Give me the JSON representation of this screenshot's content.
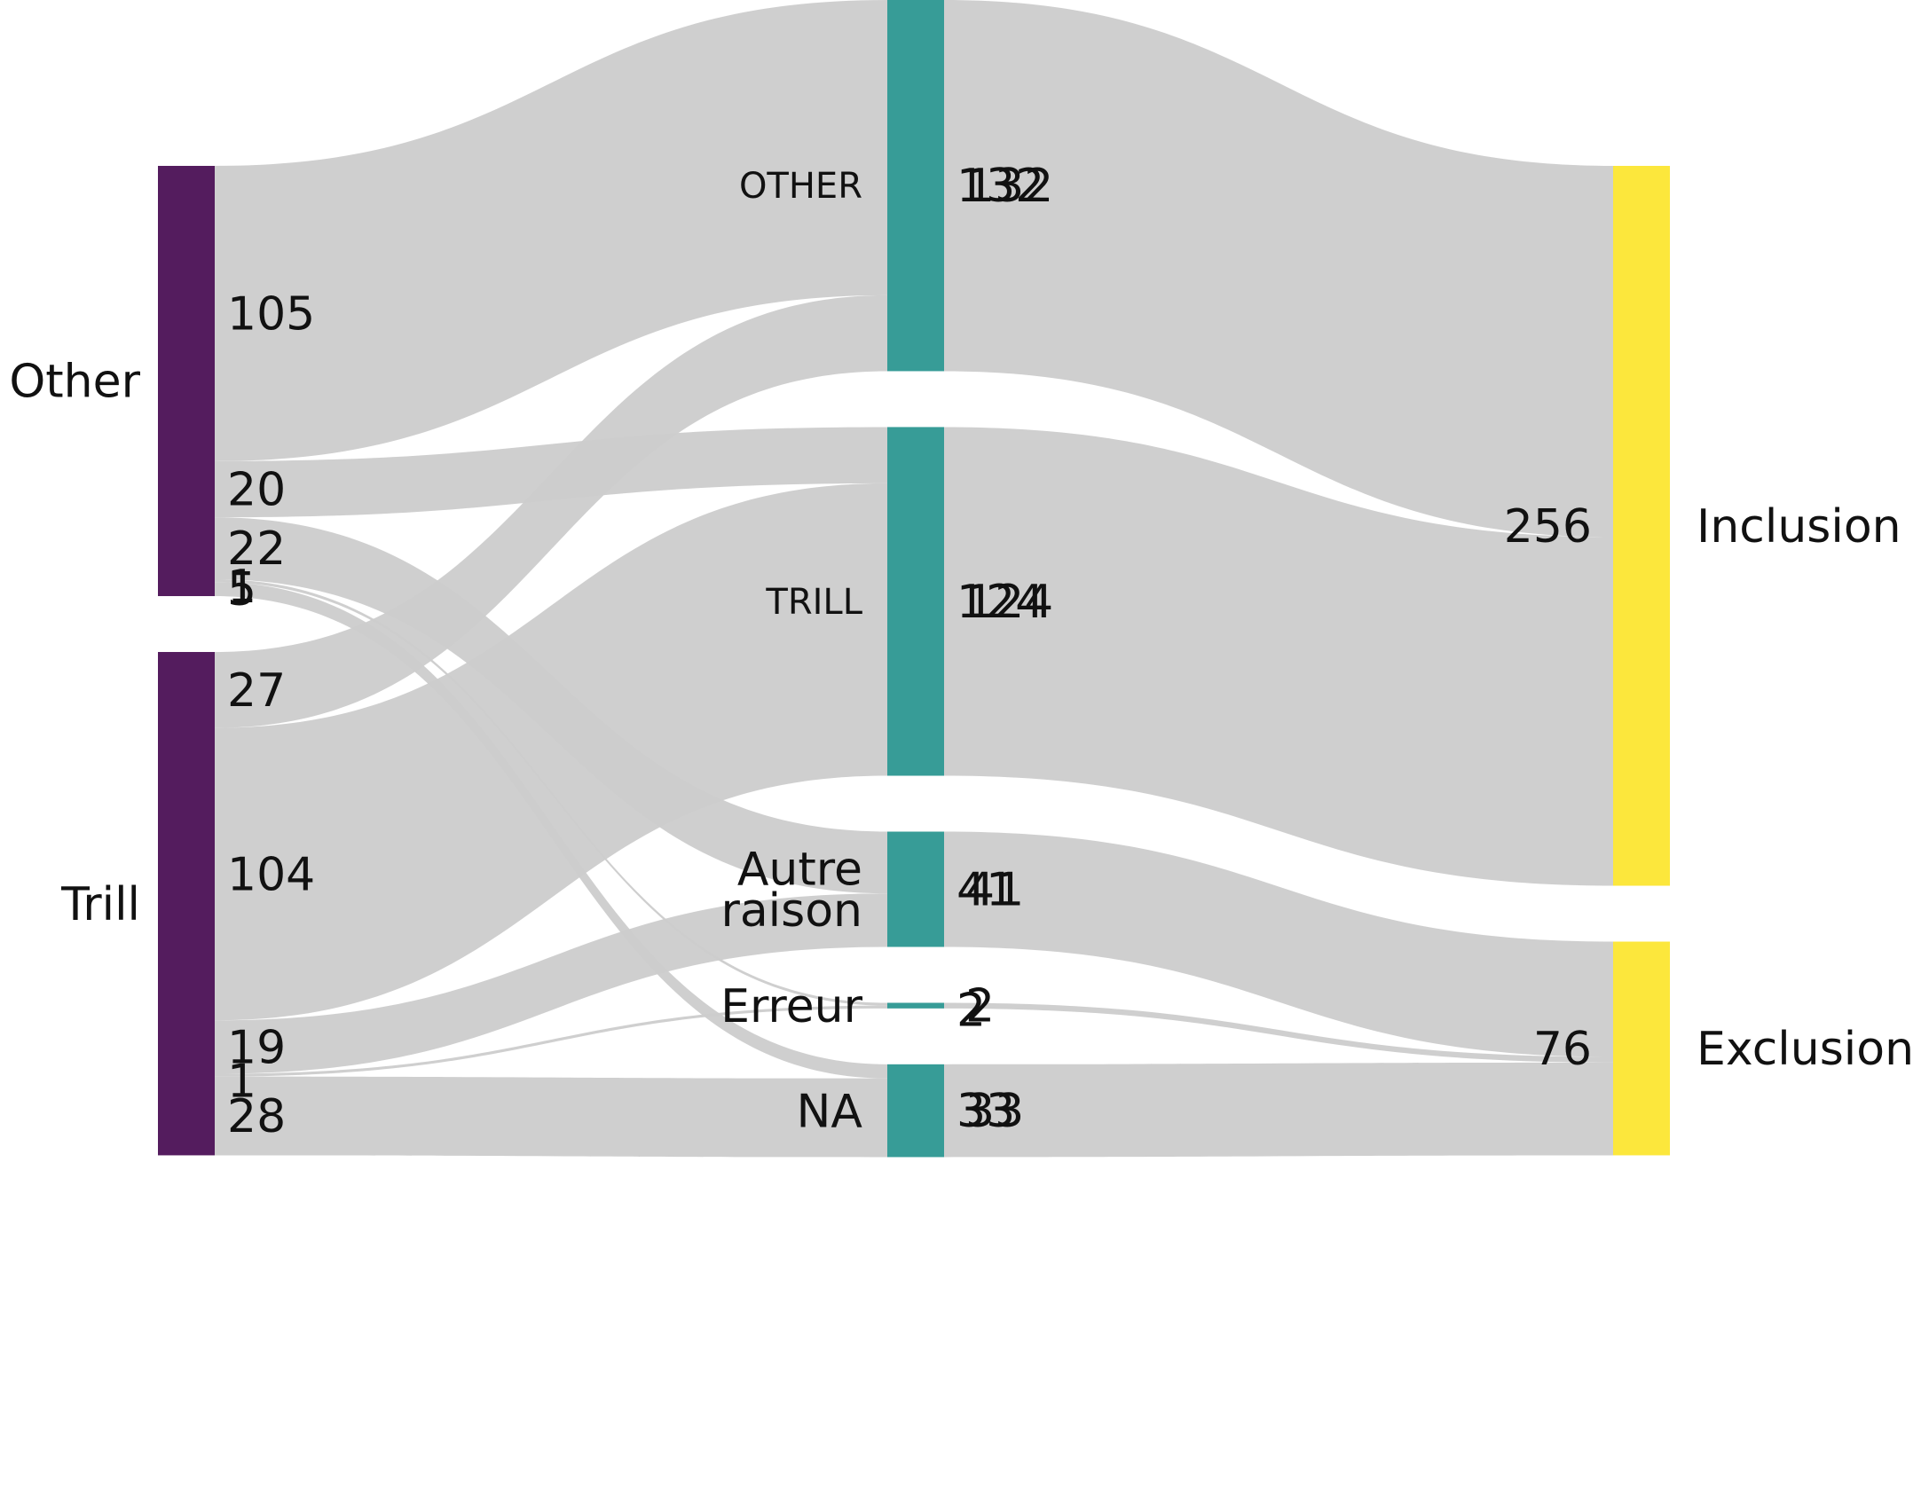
{
  "chart_data": {
    "type": "sankey",
    "title": "",
    "columns": [
      {
        "nodes": [
          {
            "id": "other",
            "label": "Other",
            "value": 153,
            "color": "#541c5e"
          },
          {
            "id": "trill",
            "label": "Trill",
            "value": 179,
            "color": "#541c5e"
          }
        ]
      },
      {
        "nodes": [
          {
            "id": "OTHER",
            "label": "OTHER",
            "value": 132,
            "color": "#379c97"
          },
          {
            "id": "TRILL",
            "label": "TRILL",
            "value": 124,
            "color": "#379c97"
          },
          {
            "id": "autre",
            "label": "Autre\nraison",
            "value": 41,
            "color": "#379c97"
          },
          {
            "id": "erreur",
            "label": "Erreur",
            "value": 2,
            "color": "#379c97"
          },
          {
            "id": "na",
            "label": "NA",
            "value": 33,
            "color": "#379c97"
          }
        ]
      },
      {
        "nodes": [
          {
            "id": "inclusion",
            "label": "Inclusion",
            "value": 256,
            "color": "#fce73c"
          },
          {
            "id": "exclusion",
            "label": "Exclusion",
            "value": 76,
            "color": "#fce73c"
          }
        ]
      }
    ],
    "links": [
      {
        "source": "other",
        "target": "OTHER",
        "value": 105,
        "label": "105"
      },
      {
        "source": "other",
        "target": "TRILL",
        "value": 20,
        "label": "20"
      },
      {
        "source": "other",
        "target": "autre",
        "value": 22,
        "label": "22"
      },
      {
        "source": "other",
        "target": "erreur",
        "value": 1,
        "label": "1"
      },
      {
        "source": "other",
        "target": "na",
        "value": 5,
        "label": "5"
      },
      {
        "source": "trill",
        "target": "OTHER",
        "value": 27,
        "label": "27"
      },
      {
        "source": "trill",
        "target": "TRILL",
        "value": 104,
        "label": "104"
      },
      {
        "source": "trill",
        "target": "autre",
        "value": 19,
        "label": "19"
      },
      {
        "source": "trill",
        "target": "erreur",
        "value": 1,
        "label": "1"
      },
      {
        "source": "trill",
        "target": "na",
        "value": 28,
        "label": "28"
      },
      {
        "source": "OTHER",
        "target": "inclusion",
        "value": 132,
        "label": "132"
      },
      {
        "source": "TRILL",
        "target": "inclusion",
        "value": 124,
        "label": "124"
      },
      {
        "source": "autre",
        "target": "exclusion",
        "value": 41,
        "label": "41"
      },
      {
        "source": "erreur",
        "target": "exclusion",
        "value": 2,
        "label": "2"
      },
      {
        "source": "na",
        "target": "exclusion",
        "value": 33,
        "label": "33"
      }
    ],
    "colors": {
      "link": "#cccccc",
      "link_highlight": "#a3a3a3",
      "left_nodes": "#541c5e",
      "middle_nodes": "#379c97",
      "right_nodes": "#fce73c"
    }
  }
}
